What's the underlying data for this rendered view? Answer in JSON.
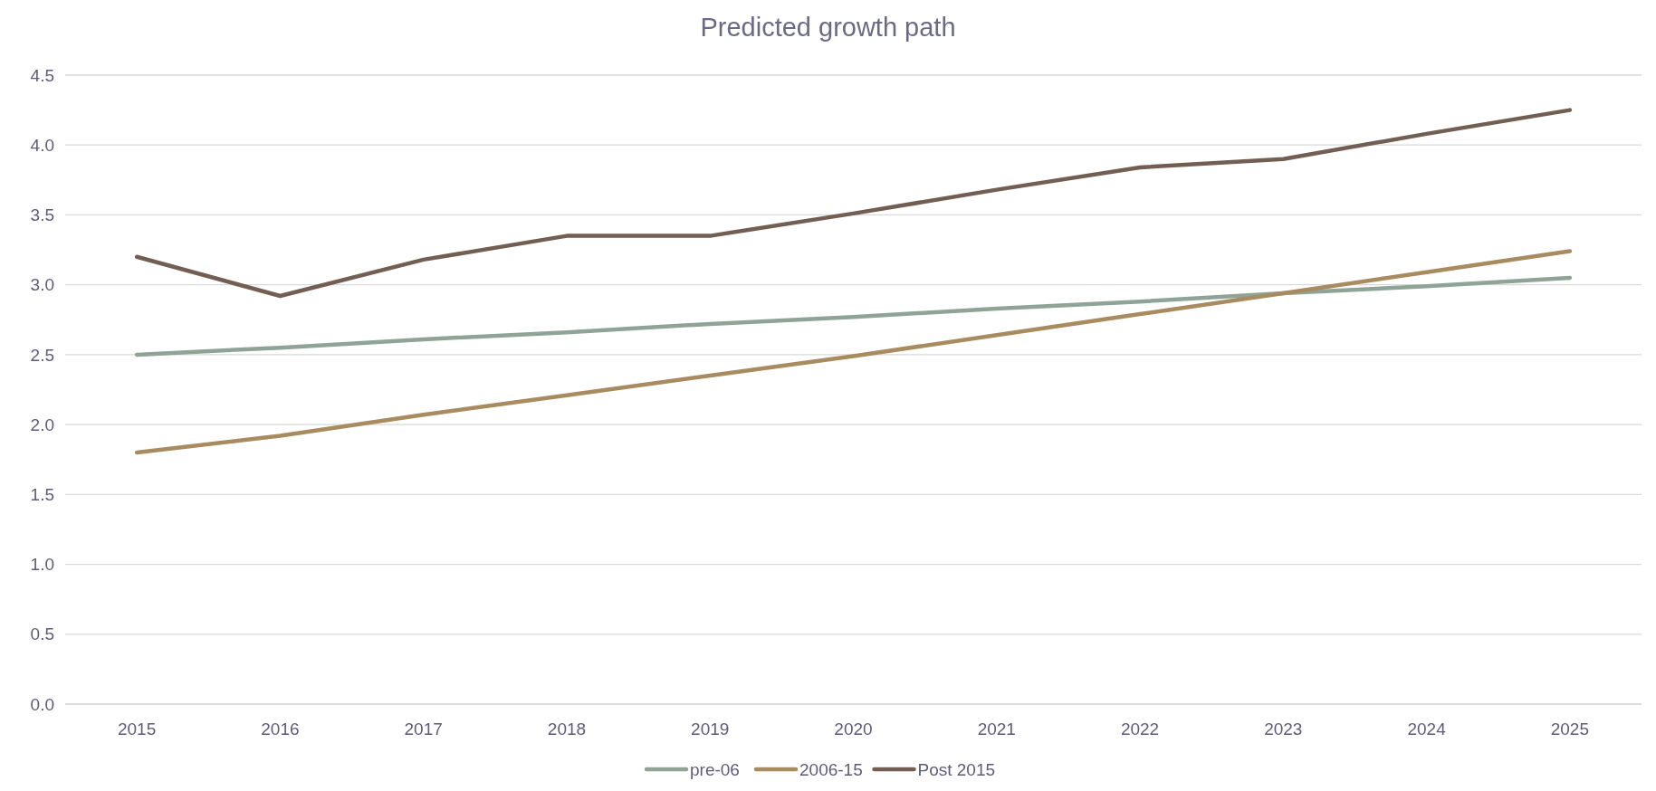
{
  "chart_data": {
    "type": "line",
    "title": "Predicted growth path",
    "categories": [
      "2015",
      "2016",
      "2017",
      "2018",
      "2019",
      "2020",
      "2021",
      "2022",
      "2023",
      "2024",
      "2025"
    ],
    "series": [
      {
        "name": "pre-06",
        "color": "#8fa496",
        "values": [
          2.5,
          2.55,
          2.61,
          2.66,
          2.72,
          2.77,
          2.83,
          2.88,
          2.94,
          2.99,
          3.05
        ]
      },
      {
        "name": "2006-15",
        "color": "#a98b60",
        "values": [
          1.8,
          1.92,
          2.07,
          2.21,
          2.35,
          2.49,
          2.64,
          2.79,
          2.94,
          3.09,
          3.24
        ]
      },
      {
        "name": "Post 2015",
        "color": "#725e52",
        "values": [
          3.2,
          2.92,
          3.18,
          3.35,
          3.35,
          3.51,
          3.68,
          3.84,
          3.9,
          4.08,
          4.25
        ]
      }
    ],
    "ylim": [
      0,
      4.5
    ],
    "yticks": [
      {
        "value": 0,
        "label": "0.0"
      },
      {
        "value": 0.5,
        "label": "0.5"
      },
      {
        "value": 1,
        "label": "1.0"
      },
      {
        "value": 1.5,
        "label": "1.5"
      },
      {
        "value": 2,
        "label": "2.0"
      },
      {
        "value": 2.5,
        "label": "2.5"
      },
      {
        "value": 3,
        "label": "3.0"
      },
      {
        "value": 3.5,
        "label": "3.5"
      },
      {
        "value": 4,
        "label": "4.0"
      },
      {
        "value": 4.5,
        "label": "4.5"
      }
    ],
    "grid": "y",
    "legend": "bottom",
    "marker": "none",
    "line_style": "solid"
  }
}
